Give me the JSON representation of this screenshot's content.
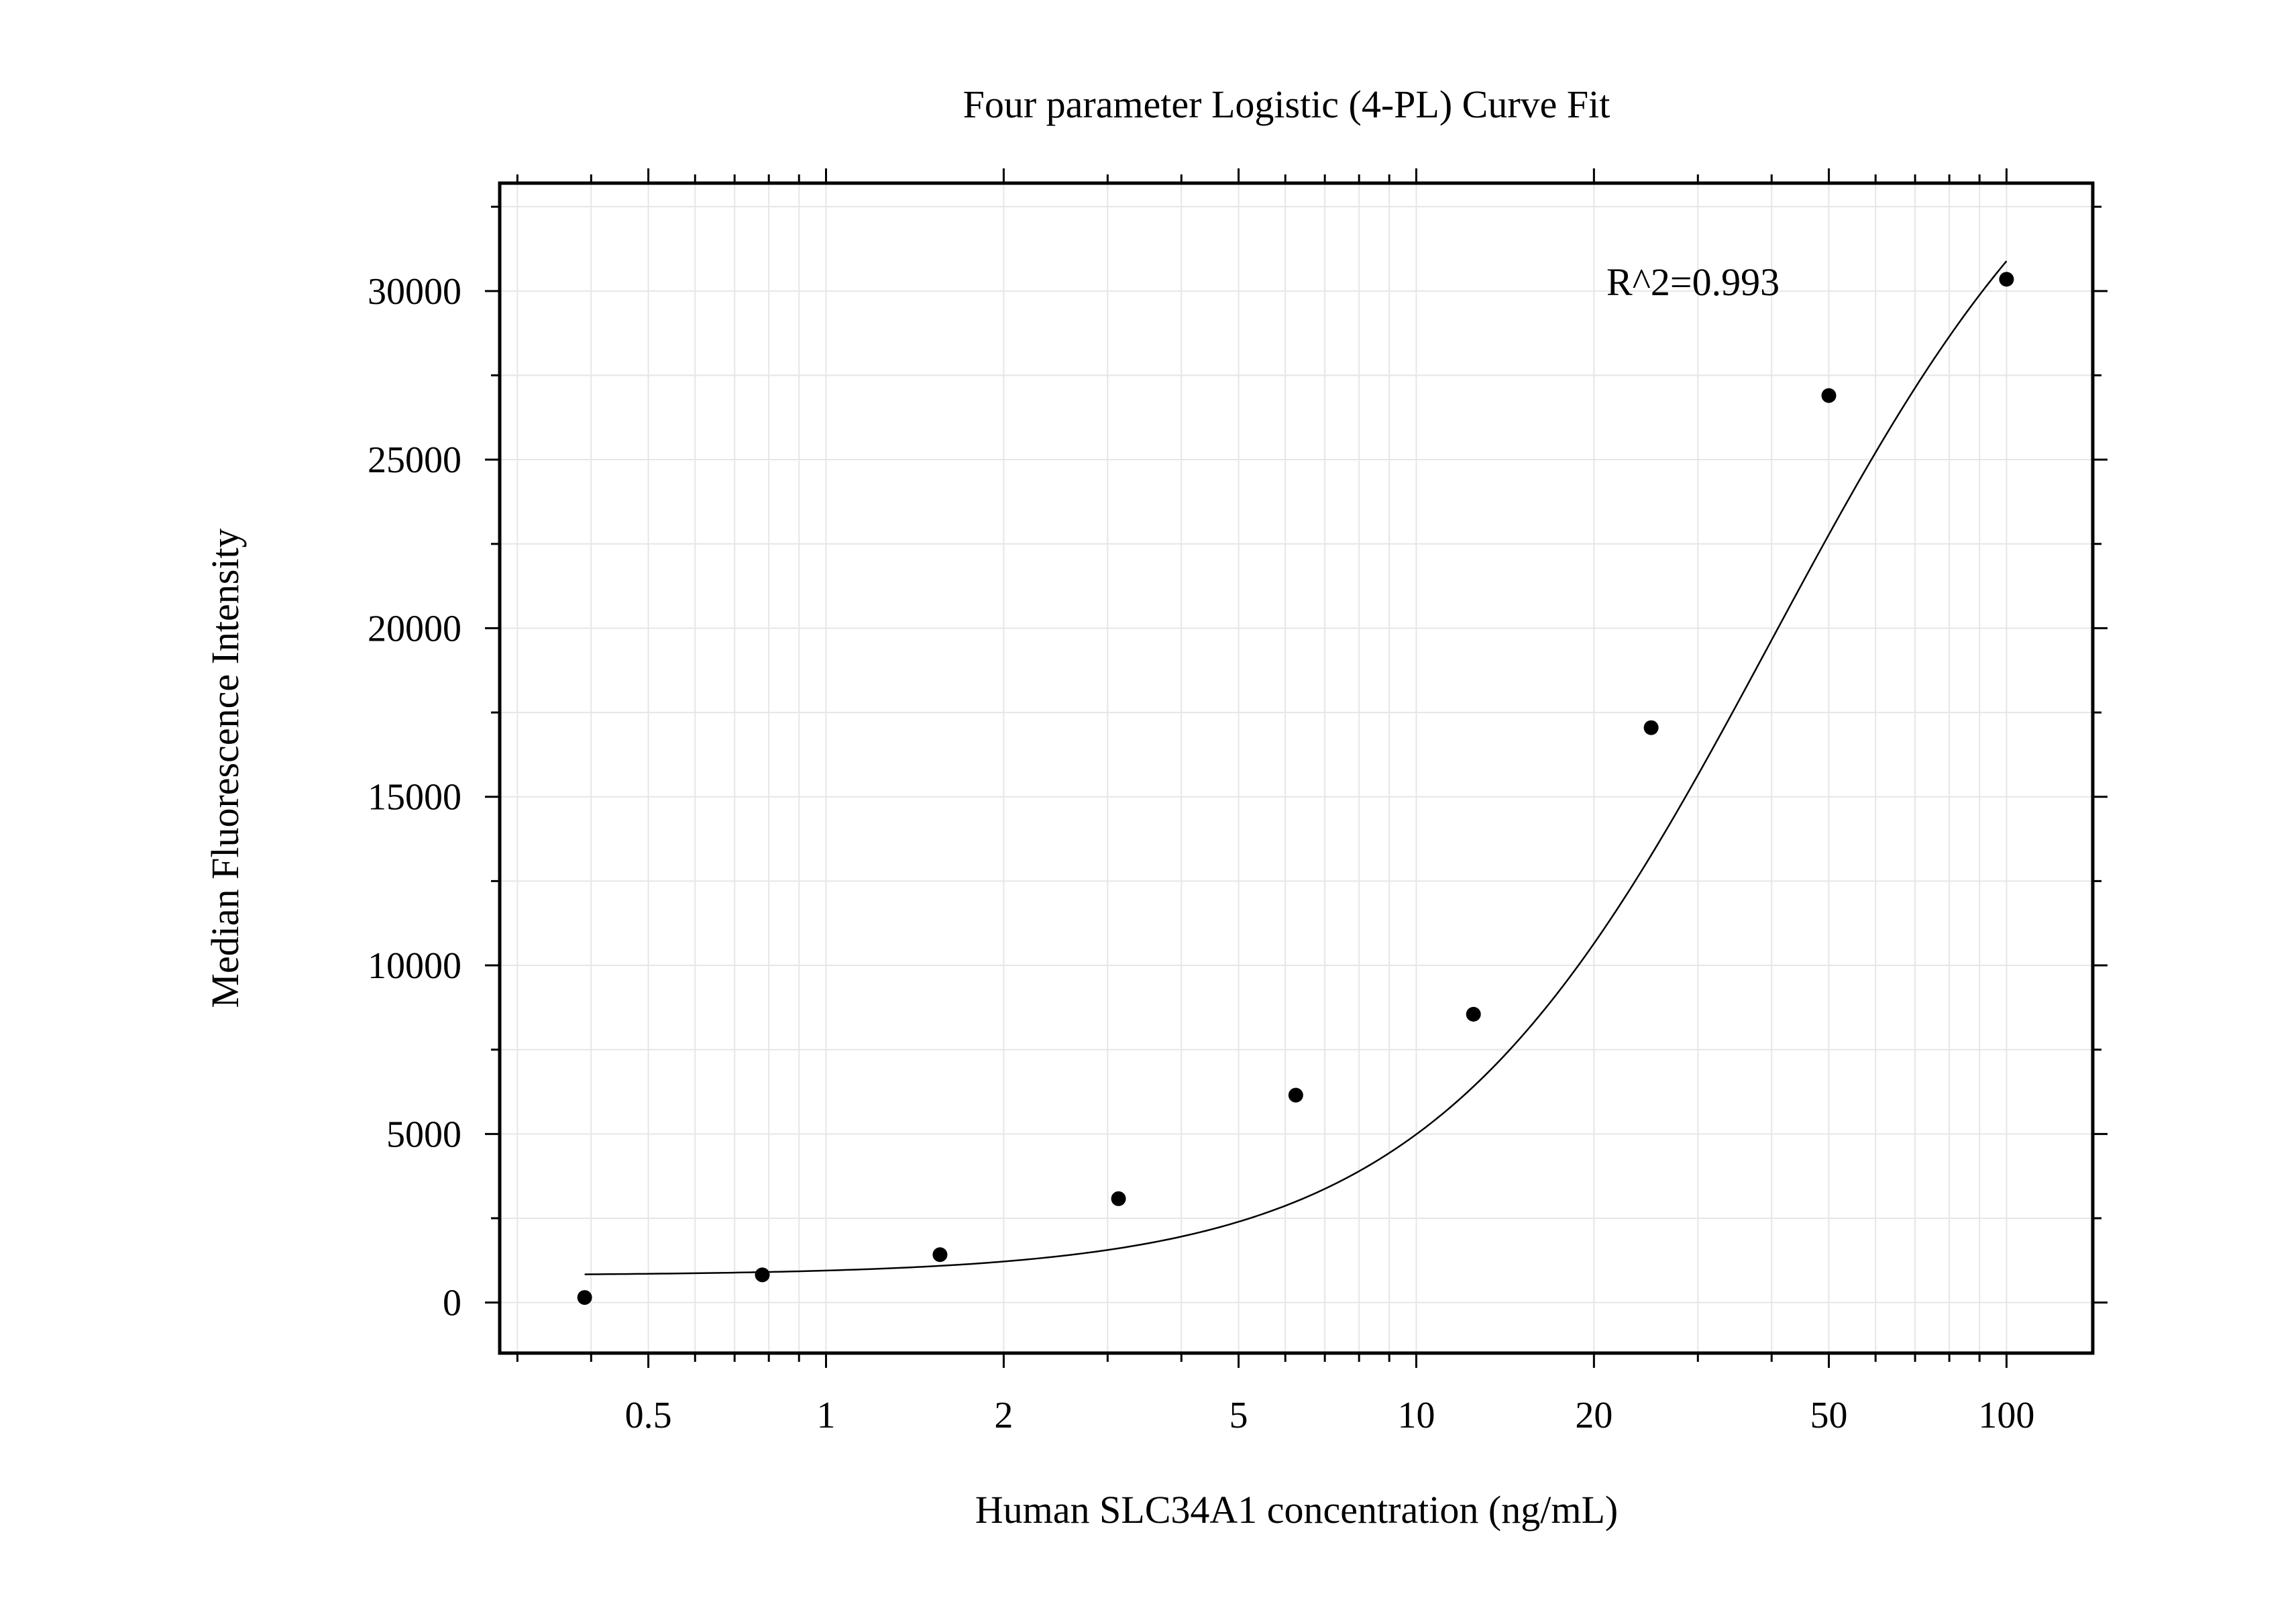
{
  "chart_data": {
    "type": "scatter",
    "title": "Four parameter Logistic (4-PL) Curve Fit",
    "xlabel": "Human SLC34A1 concentration (ng/mL)",
    "ylabel": "Median Fluorescence Intensity",
    "x_scale": "log",
    "xlim": [
      0.28,
      140
    ],
    "ylim": [
      -1500,
      33200
    ],
    "x_ticks": [
      0.5,
      1,
      2,
      5,
      10,
      20,
      50,
      100
    ],
    "x_tick_labels": [
      "0.5",
      "1",
      "2",
      "5",
      "10",
      "20",
      "50",
      "100"
    ],
    "y_ticks": [
      0,
      5000,
      10000,
      15000,
      20000,
      25000,
      30000
    ],
    "y_tick_labels": [
      "0",
      "5000",
      "10000",
      "15000",
      "20000",
      "25000",
      "30000"
    ],
    "grid": true,
    "annotation": "R^2=0.993",
    "points": [
      {
        "x": 0.39,
        "y": 150
      },
      {
        "x": 0.78,
        "y": 820
      },
      {
        "x": 1.56,
        "y": 1420
      },
      {
        "x": 3.13,
        "y": 3080
      },
      {
        "x": 6.25,
        "y": 6150
      },
      {
        "x": 12.5,
        "y": 8550
      },
      {
        "x": 25,
        "y": 17050
      },
      {
        "x": 50,
        "y": 26900
      },
      {
        "x": 100,
        "y": 30350
      }
    ],
    "fit": {
      "model": "4PL",
      "bottom": 800,
      "top": 38500,
      "ec50": 40,
      "hill": 1.5,
      "x_range": [
        0.39,
        100
      ]
    },
    "colors": {
      "points": "#000000",
      "curve": "#000000",
      "grid": "#e6e6e6",
      "frame": "#000000"
    }
  }
}
